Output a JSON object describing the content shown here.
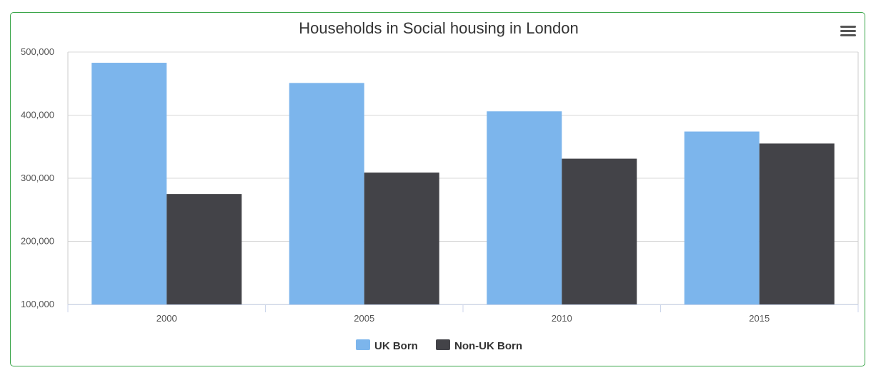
{
  "chart_data": {
    "type": "bar",
    "title": "Households in Social housing in London",
    "categories": [
      "2000",
      "2005",
      "2010",
      "2015"
    ],
    "series": [
      {
        "name": "UK Born",
        "color": "#7cb5ec",
        "values": [
          483000,
          451000,
          406000,
          374000
        ]
      },
      {
        "name": "Non-UK Born",
        "color": "#434348",
        "values": [
          275000,
          309000,
          331000,
          355000
        ]
      }
    ],
    "ylim": [
      100000,
      500000
    ],
    "yticks": [
      100000,
      200000,
      300000,
      400000,
      500000
    ],
    "ytick_labels": [
      "100,000",
      "200,000",
      "300,000",
      "400,000",
      "500,000"
    ],
    "grid": true,
    "legend": "bottom-center"
  },
  "ui": {
    "menu_icon": "hamburger-menu-icon"
  }
}
